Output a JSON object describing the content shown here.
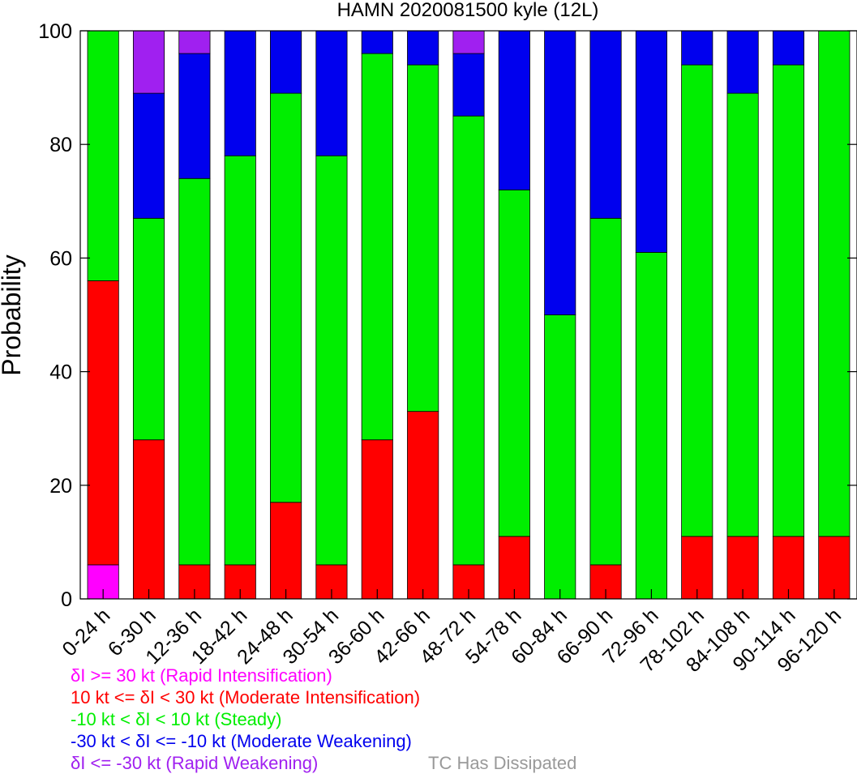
{
  "chart_data": {
    "type": "bar",
    "stacked": true,
    "title": "HAMN 2020081500 kyle (12L)",
    "xlabel": "",
    "ylabel": "Probability",
    "ylim": [
      0,
      100
    ],
    "yticks": [
      0,
      20,
      40,
      60,
      80,
      100
    ],
    "grid": false,
    "legend_position": "bottom-left",
    "categories": [
      "0-24 h",
      "6-30 h",
      "12-36 h",
      "18-42 h",
      "24-48 h",
      "30-54 h",
      "36-60 h",
      "42-66 h",
      "48-72 h",
      "54-78 h",
      "60-84 h",
      "66-90 h",
      "72-96 h",
      "78-102 h",
      "84-108 h",
      "90-114 h",
      "96-120 h"
    ],
    "series": [
      {
        "name": "δI >= 30 kt (Rapid Intensification)",
        "color": "#ff00ff",
        "values": [
          6,
          0,
          0,
          0,
          0,
          0,
          0,
          0,
          0,
          0,
          0,
          0,
          0,
          0,
          0,
          0,
          0
        ]
      },
      {
        "name": "10 kt <= δI < 30 kt (Moderate Intensification)",
        "color": "#ff0000",
        "values": [
          50,
          28,
          6,
          6,
          17,
          6,
          28,
          33,
          6,
          11,
          0,
          6,
          0,
          11,
          11,
          11,
          11
        ]
      },
      {
        "name": "-10 kt < δI < 10 kt (Steady)",
        "color": "#00ee00",
        "values": [
          44,
          39,
          68,
          72,
          72,
          72,
          68,
          61,
          79,
          61,
          50,
          61,
          61,
          83,
          78,
          83,
          89
        ]
      },
      {
        "name": "-30 kt < δI <= -10 kt (Moderate Weakening)",
        "color": "#0000ee",
        "values": [
          0,
          22,
          22,
          22,
          11,
          22,
          4,
          6,
          11,
          28,
          50,
          33,
          39,
          6,
          11,
          6,
          0
        ]
      },
      {
        "name": "δI <= -30 kt (Rapid Weakening)",
        "color": "#a020f0",
        "values": [
          0,
          11,
          4,
          0,
          0,
          0,
          0,
          0,
          4,
          0,
          0,
          0,
          0,
          0,
          0,
          0,
          0
        ]
      },
      {
        "name": "TC Has Dissipated",
        "color": "#999999",
        "values": [
          0,
          0,
          0,
          0,
          0,
          0,
          0,
          0,
          0,
          0,
          0,
          0,
          0,
          0,
          0,
          0,
          0
        ]
      }
    ]
  }
}
